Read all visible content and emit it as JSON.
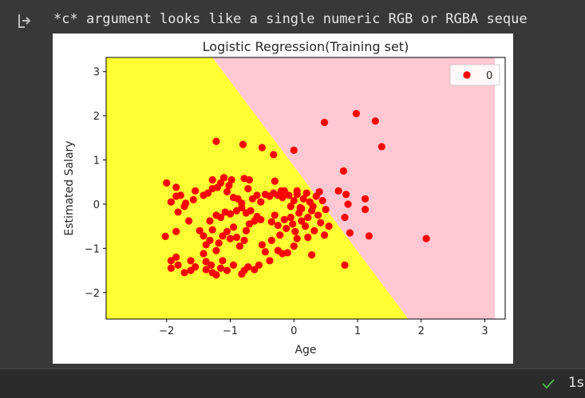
{
  "output": {
    "warning_text": "*c* argument looks like a single numeric RGB or RGBA seque",
    "icon": "output-arrow-icon"
  },
  "colors": {
    "class0_region": "#ffff33",
    "class1_region": "#ffc8d2",
    "points": "#ff0000",
    "background": "#383838"
  },
  "chart_data": {
    "type": "scatter",
    "title": "Logistic Regression(Training set)",
    "xlabel": "Age",
    "ylabel": "Estimated Salary",
    "xlim": [
      -2.95,
      3.32
    ],
    "ylim": [
      -2.6,
      3.32
    ],
    "xticks": [
      -2,
      -1,
      0,
      1,
      2,
      3
    ],
    "yticks": [
      -2,
      -1,
      0,
      1,
      2,
      3
    ],
    "xtick_labels": [
      "−2",
      "−1",
      "0",
      "1",
      "2",
      "3"
    ],
    "ytick_labels": [
      "−2",
      "−1",
      "0",
      "1",
      "2",
      "3"
    ],
    "grid": false,
    "legend": {
      "placement": "top-right",
      "entries": [
        "0"
      ]
    },
    "decision_boundary": [
      [
        -1.28,
        3.32
      ],
      [
        1.8,
        -2.6
      ]
    ],
    "region_x_max": 3.16,
    "series": [
      {
        "name": "0",
        "points": [
          [
            -2.0,
            0.48
          ],
          [
            -1.93,
            0.05
          ],
          [
            -1.85,
            0.38
          ],
          [
            -1.85,
            0.18
          ],
          [
            -1.78,
            0.2
          ],
          [
            -1.7,
            0.02
          ],
          [
            -1.72,
            -0.05
          ],
          [
            -1.58,
            0.1
          ],
          [
            -1.82,
            -0.18
          ],
          [
            -1.65,
            -0.38
          ],
          [
            -1.85,
            -0.62
          ],
          [
            -2.02,
            -0.73
          ],
          [
            -1.93,
            -1.28
          ],
          [
            -1.93,
            -1.45
          ],
          [
            -1.85,
            -1.2
          ],
          [
            -1.82,
            -1.38
          ],
          [
            -1.72,
            -1.55
          ],
          [
            -1.62,
            -1.5
          ],
          [
            -1.62,
            -1.28
          ],
          [
            -1.55,
            -1.42
          ],
          [
            -1.42,
            -1.12
          ],
          [
            -1.38,
            -1.3
          ],
          [
            -1.38,
            -1.48
          ],
          [
            -1.3,
            -1.38
          ],
          [
            -1.28,
            -1.55
          ],
          [
            -1.22,
            -1.6
          ],
          [
            -1.15,
            -1.45
          ],
          [
            -1.12,
            -1.28
          ],
          [
            -1.05,
            -1.5
          ],
          [
            -0.95,
            -1.38
          ],
          [
            -0.82,
            -1.58
          ],
          [
            -0.78,
            -1.5
          ],
          [
            -0.72,
            -1.42
          ],
          [
            -0.62,
            -1.48
          ],
          [
            -0.55,
            -1.38
          ],
          [
            -0.38,
            -1.28
          ],
          [
            -0.45,
            -1.08
          ],
          [
            -0.5,
            -0.92
          ],
          [
            -0.35,
            -0.82
          ],
          [
            -0.25,
            -1.05
          ],
          [
            -0.18,
            -1.12
          ],
          [
            -0.1,
            -1.1
          ],
          [
            0.0,
            -0.95
          ],
          [
            0.05,
            -0.78
          ],
          [
            -1.55,
            0.3
          ],
          [
            -1.42,
            0.2
          ],
          [
            -1.35,
            0.25
          ],
          [
            -1.28,
            0.35
          ],
          [
            -1.28,
            0.55
          ],
          [
            -1.2,
            0.38
          ],
          [
            -1.15,
            0.48
          ],
          [
            -1.1,
            0.6
          ],
          [
            -1.02,
            0.42
          ],
          [
            -1.05,
            0.28
          ],
          [
            -0.95,
            0.15
          ],
          [
            -0.98,
            0.55
          ],
          [
            -0.88,
            0.12
          ],
          [
            -0.82,
            0.02
          ],
          [
            -0.78,
            0.58
          ],
          [
            -0.72,
            0.35
          ],
          [
            -0.7,
            0.55
          ],
          [
            -0.65,
            0.12
          ],
          [
            -0.58,
            0.2
          ],
          [
            -0.52,
            0.05
          ],
          [
            -0.45,
            0.22
          ],
          [
            -0.38,
            0.18
          ],
          [
            -0.32,
            0.25
          ],
          [
            -0.25,
            0.2
          ],
          [
            -0.18,
            0.15
          ],
          [
            -0.15,
            0.3
          ],
          [
            -0.08,
            0.2
          ],
          [
            -1.48,
            -0.6
          ],
          [
            -1.42,
            -0.72
          ],
          [
            -1.38,
            -0.92
          ],
          [
            -1.32,
            -0.82
          ],
          [
            -1.28,
            -0.58
          ],
          [
            -1.22,
            -1.05
          ],
          [
            -1.18,
            -0.88
          ],
          [
            -1.12,
            -0.72
          ],
          [
            -1.05,
            -0.62
          ],
          [
            -1.0,
            -0.78
          ],
          [
            -0.95,
            -0.52
          ],
          [
            -0.9,
            -0.75
          ],
          [
            -0.85,
            -0.95
          ],
          [
            -0.78,
            -0.82
          ],
          [
            -0.75,
            -0.6
          ],
          [
            -0.7,
            -0.45
          ],
          [
            -0.62,
            -0.38
          ],
          [
            -0.58,
            -0.28
          ],
          [
            -0.52,
            -0.35
          ],
          [
            -1.32,
            -0.38
          ],
          [
            -1.22,
            -0.25
          ],
          [
            -1.15,
            -0.3
          ],
          [
            -1.08,
            -0.18
          ],
          [
            -1.0,
            -0.22
          ],
          [
            -0.9,
            -0.15
          ],
          [
            -0.82,
            -0.08
          ],
          [
            -0.75,
            -0.2
          ],
          [
            -0.68,
            -0.15
          ],
          [
            -0.35,
            -0.4
          ],
          [
            -0.3,
            -0.25
          ],
          [
            -0.25,
            -0.48
          ],
          [
            -0.22,
            -0.7
          ],
          [
            -0.15,
            -0.35
          ],
          [
            -0.12,
            -0.55
          ],
          [
            -0.05,
            -0.3
          ],
          [
            -0.02,
            -0.45
          ],
          [
            0.02,
            -0.62
          ],
          [
            0.08,
            -0.2
          ],
          [
            0.12,
            -0.38
          ],
          [
            0.18,
            -0.5
          ],
          [
            0.22,
            -0.3
          ],
          [
            0.28,
            -0.15
          ],
          [
            0.32,
            -0.6
          ],
          [
            0.38,
            -0.25
          ],
          [
            0.42,
            -0.42
          ],
          [
            0.48,
            -0.7
          ],
          [
            0.55,
            -0.5
          ],
          [
            -0.05,
            -0.05
          ],
          [
            0.0,
            0.08
          ],
          [
            0.05,
            0.22
          ],
          [
            0.1,
            -0.08
          ],
          [
            0.15,
            0.12
          ],
          [
            0.2,
            0.25
          ],
          [
            0.25,
            0.05
          ],
          [
            0.3,
            -0.05
          ],
          [
            0.35,
            0.18
          ],
          [
            0.4,
            0.28
          ],
          [
            0.45,
            0.08
          ],
          [
            0.5,
            -0.12
          ],
          [
            -1.22,
            1.42
          ],
          [
            -0.8,
            1.35
          ],
          [
            -0.5,
            1.28
          ],
          [
            -0.32,
            1.12
          ],
          [
            0.0,
            1.22
          ],
          [
            -0.3,
            0.52
          ],
          [
            -0.2,
            0.3
          ],
          [
            0.05,
            0.3
          ],
          [
            0.12,
            -0.1
          ],
          [
            0.28,
            -1.15
          ],
          [
            0.22,
            -0.75
          ],
          [
            0.48,
            1.85
          ],
          [
            0.98,
            2.05
          ],
          [
            1.28,
            1.88
          ],
          [
            1.38,
            1.3
          ],
          [
            0.78,
            0.75
          ],
          [
            0.7,
            0.3
          ],
          [
            0.82,
            0.22
          ],
          [
            0.85,
            0.0
          ],
          [
            0.8,
            -0.3
          ],
          [
            0.88,
            -0.65
          ],
          [
            0.8,
            -1.38
          ],
          [
            1.12,
            0.12
          ],
          [
            1.12,
            -0.12
          ],
          [
            1.18,
            -0.72
          ],
          [
            2.08,
            -0.78
          ]
        ]
      }
    ]
  },
  "status": {
    "check_icon": "checkmark-icon",
    "elapsed": "1s"
  }
}
